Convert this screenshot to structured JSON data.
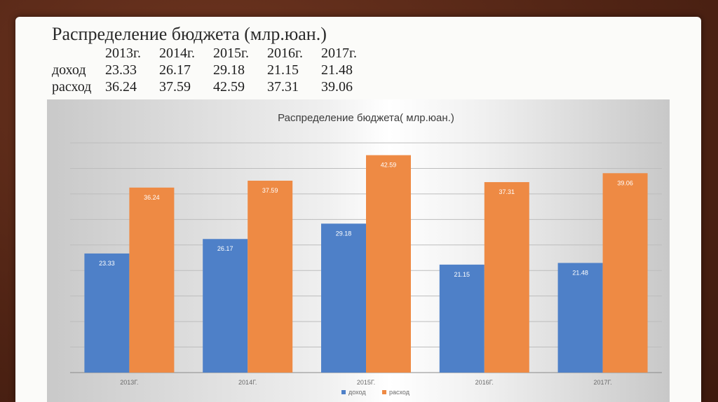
{
  "slide": {
    "title": "Распределение бюджета (млр.юан.)",
    "table": {
      "header": [
        "2013г.",
        "2014г.",
        "2015г.",
        "2016г.",
        "2017г."
      ],
      "rows": [
        {
          "label": "доход",
          "values": [
            "23.33",
            "26.17",
            "29.18",
            "21.15",
            "21.48"
          ]
        },
        {
          "label": "расход",
          "values": [
            "36.24",
            "37.59",
            "42.59",
            "37.31",
            "39.06"
          ]
        }
      ]
    }
  },
  "chart_data": {
    "type": "bar",
    "title": "Распределение бюджета( млр.юан.)",
    "categories": [
      "2013Г.",
      "2014Г.",
      "2015Г.",
      "2016Г.",
      "2017Г."
    ],
    "series": [
      {
        "name": "доход",
        "color": "#4e80c8",
        "values": [
          23.33,
          26.17,
          29.18,
          21.15,
          21.48
        ]
      },
      {
        "name": "расход",
        "color": "#ee8a44",
        "values": [
          36.24,
          37.59,
          42.59,
          37.31,
          39.06
        ]
      }
    ],
    "ylim": [
      0,
      45
    ],
    "grid": true,
    "data_labels": true,
    "legend": "bottom-center",
    "xlabel": "",
    "ylabel": ""
  }
}
